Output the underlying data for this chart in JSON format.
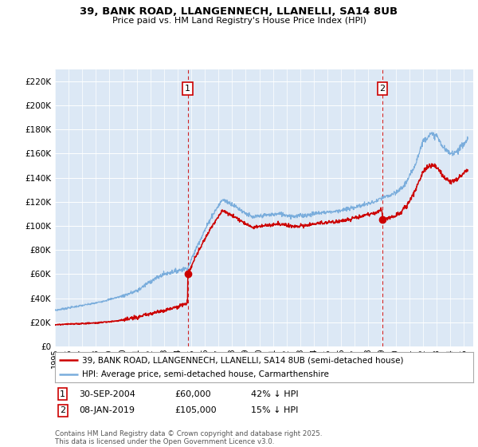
{
  "title": "39, BANK ROAD, LLANGENNECH, LLANELLI, SA14 8UB",
  "subtitle": "Price paid vs. HM Land Registry's House Price Index (HPI)",
  "ylabel_ticks": [
    "£0",
    "£20K",
    "£40K",
    "£60K",
    "£80K",
    "£100K",
    "£120K",
    "£140K",
    "£160K",
    "£180K",
    "£200K",
    "£220K"
  ],
  "ytick_values": [
    0,
    20000,
    40000,
    60000,
    80000,
    100000,
    120000,
    140000,
    160000,
    180000,
    200000,
    220000
  ],
  "ylim": [
    0,
    230000
  ],
  "xlim_start": 1995.0,
  "xlim_end": 2025.7,
  "sale1_x": 2004.75,
  "sale1_price": 60000,
  "sale2_x": 2019.04,
  "sale2_price": 105000,
  "line_color_price": "#cc0000",
  "line_color_hpi": "#7aaddc",
  "vline_color": "#cc0000",
  "legend_label_price": "39, BANK ROAD, LLANGENNECH, LLANELLI, SA14 8UB (semi-detached house)",
  "legend_label_hpi": "HPI: Average price, semi-detached house, Carmarthenshire",
  "footer": "Contains HM Land Registry data © Crown copyright and database right 2025.\nThis data is licensed under the Open Government Licence v3.0.",
  "background_color": "#ffffff",
  "plot_bg_color": "#dce8f5"
}
